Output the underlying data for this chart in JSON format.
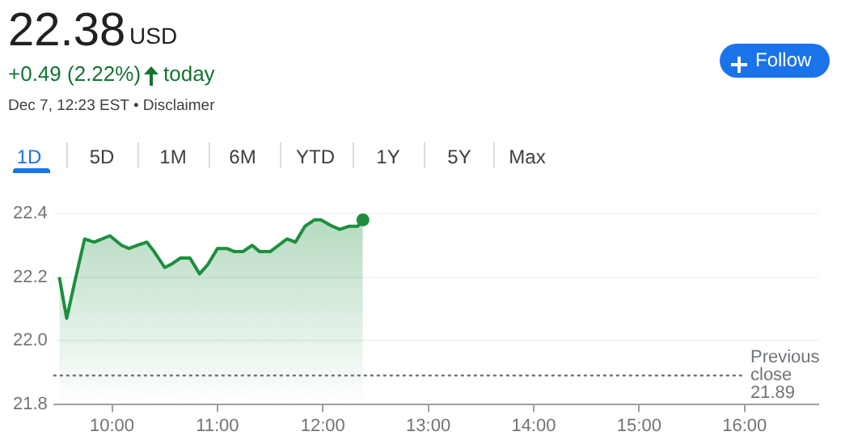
{
  "chart_data": {
    "type": "area",
    "title": "22.38",
    "annotations": [
      "USD",
      "+0.49 (2.22%)",
      "today",
      "Dec 7, 12:23 EST • Disclaimer",
      "1D",
      "5D",
      "1M",
      "6M",
      "YTD",
      "1Y",
      "5Y",
      "Max",
      "Follow"
    ],
    "x": [
      9.5,
      9.57,
      9.65,
      9.74,
      9.83,
      9.98,
      10.09,
      10.16,
      10.24,
      10.33,
      10.4,
      10.5,
      10.56,
      10.65,
      10.74,
      10.83,
      10.91,
      11.0,
      11.09,
      11.16,
      11.24,
      11.33,
      11.4,
      11.5,
      11.58,
      11.66,
      11.74,
      11.83,
      11.92,
      11.98,
      12.09,
      12.16,
      12.25,
      12.33,
      12.38
    ],
    "series": [
      {
        "color": "#1e8e3e",
        "values": [
          22.2,
          22.07,
          22.19,
          22.32,
          22.31,
          22.33,
          22.3,
          22.29,
          22.3,
          22.31,
          22.28,
          22.23,
          22.24,
          22.26,
          22.26,
          22.21,
          22.24,
          22.29,
          22.29,
          22.28,
          22.28,
          22.3,
          22.28,
          22.28,
          22.3,
          22.32,
          22.31,
          22.36,
          22.38,
          22.38,
          22.36,
          22.35,
          22.36,
          22.36,
          22.38
        ]
      }
    ],
    "xlim": [
      9.45,
      16.7
    ],
    "xticks": [
      {
        "value": 10,
        "label": "10:00"
      },
      {
        "value": 11,
        "label": "11:00"
      },
      {
        "value": 12,
        "label": "12:00"
      },
      {
        "value": 13,
        "label": "13:00"
      },
      {
        "value": 14,
        "label": "14:00"
      },
      {
        "value": 15,
        "label": "15:00"
      },
      {
        "value": 16,
        "label": "16:00"
      }
    ],
    "ylim": [
      21.8,
      22.4
    ],
    "yticks": [
      {
        "value": 21.8,
        "label": "21.8"
      },
      {
        "value": 22,
        "label": "22.0"
      },
      {
        "value": 22.2,
        "label": "22.2"
      },
      {
        "value": 22.4,
        "label": "22.4"
      }
    ],
    "ref_lines": [
      {
        "axis": "y",
        "value": 21.89,
        "label": "Previous close 21.89",
        "line_style": "dotted",
        "color": "#70757a"
      }
    ],
    "grid": "y",
    "marker": "none",
    "line_style": "solid"
  }
}
